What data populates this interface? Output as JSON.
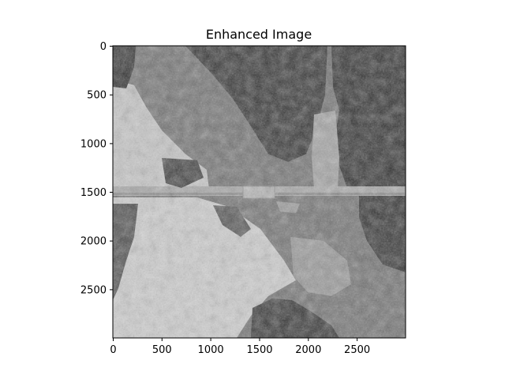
{
  "figure": {
    "title": "Enhanced Image",
    "image_description_icon": "aerial-grayscale-photo",
    "colors": {
      "background": "#ffffff",
      "axes": "#000000",
      "water": "#6e6e6e",
      "forest": "#2a2a2a",
      "snow": "#cfcfcf",
      "bridge": "#a9a9a9"
    }
  },
  "axes": {
    "x_ticks": [
      "0",
      "500",
      "1000",
      "1500",
      "2000",
      "2500"
    ],
    "y_ticks": [
      "0",
      "500",
      "1000",
      "1500",
      "2000",
      "2500"
    ],
    "x_range": [
      0,
      3000
    ],
    "y_range": [
      0,
      3000
    ],
    "y_inverted": true,
    "grid": false
  }
}
